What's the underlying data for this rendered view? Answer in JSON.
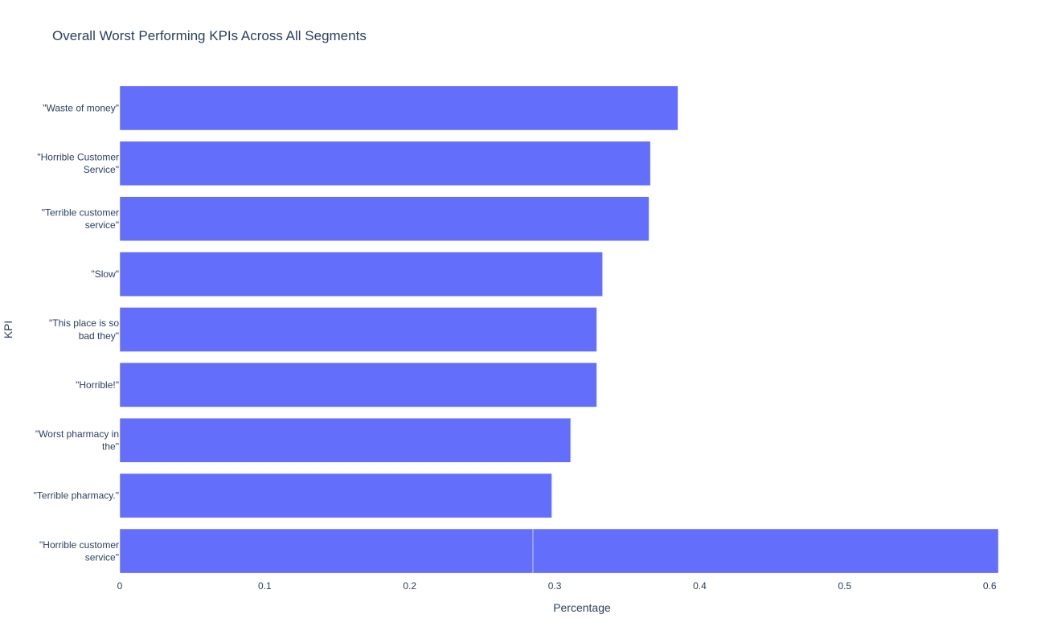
{
  "chart_data": {
    "type": "bar",
    "orientation": "horizontal",
    "title": "Overall Worst Performing KPIs Across All Segments",
    "xlabel": "Percentage",
    "ylabel": "KPI",
    "xlim": [
      0,
      0.606
    ],
    "xticks": [
      0,
      0.1,
      0.2,
      0.3,
      0.4,
      0.5,
      0.6
    ],
    "xtick_labels": [
      "0",
      "0.1",
      "0.2",
      "0.3",
      "0.4",
      "0.5",
      "0.6"
    ],
    "grid": false,
    "bar_color": "#636efa",
    "categories": [
      "\"Waste of money\"",
      "\"Horrible Customer Service\"",
      "\"Terrible customer service\"",
      "\"Slow\"",
      "\"This place is so bad they\"",
      "\"Horrible!\"",
      "\"Worst pharmacy in the\"",
      "\"Terrible pharmacy.\"",
      "\"Horrible customer service\""
    ],
    "category_label_lines": [
      [
        "\"Waste of money\""
      ],
      [
        "\"Horrible Customer",
        "Service\""
      ],
      [
        "\"Terrible customer",
        "service\""
      ],
      [
        "\"Slow\""
      ],
      [
        "\"This place is so",
        "bad they\""
      ],
      [
        "\"Horrible!\""
      ],
      [
        "\"Worst pharmacy in",
        "the\""
      ],
      [
        "\"Terrible pharmacy.\""
      ],
      [
        "\"Horrible customer",
        "service\""
      ]
    ],
    "segments": [
      [
        0.385
      ],
      [
        0.366
      ],
      [
        0.365
      ],
      [
        0.333
      ],
      [
        0.329
      ],
      [
        0.329
      ],
      [
        0.311
      ],
      [
        0.298
      ],
      [
        0.285,
        0.321
      ]
    ]
  }
}
